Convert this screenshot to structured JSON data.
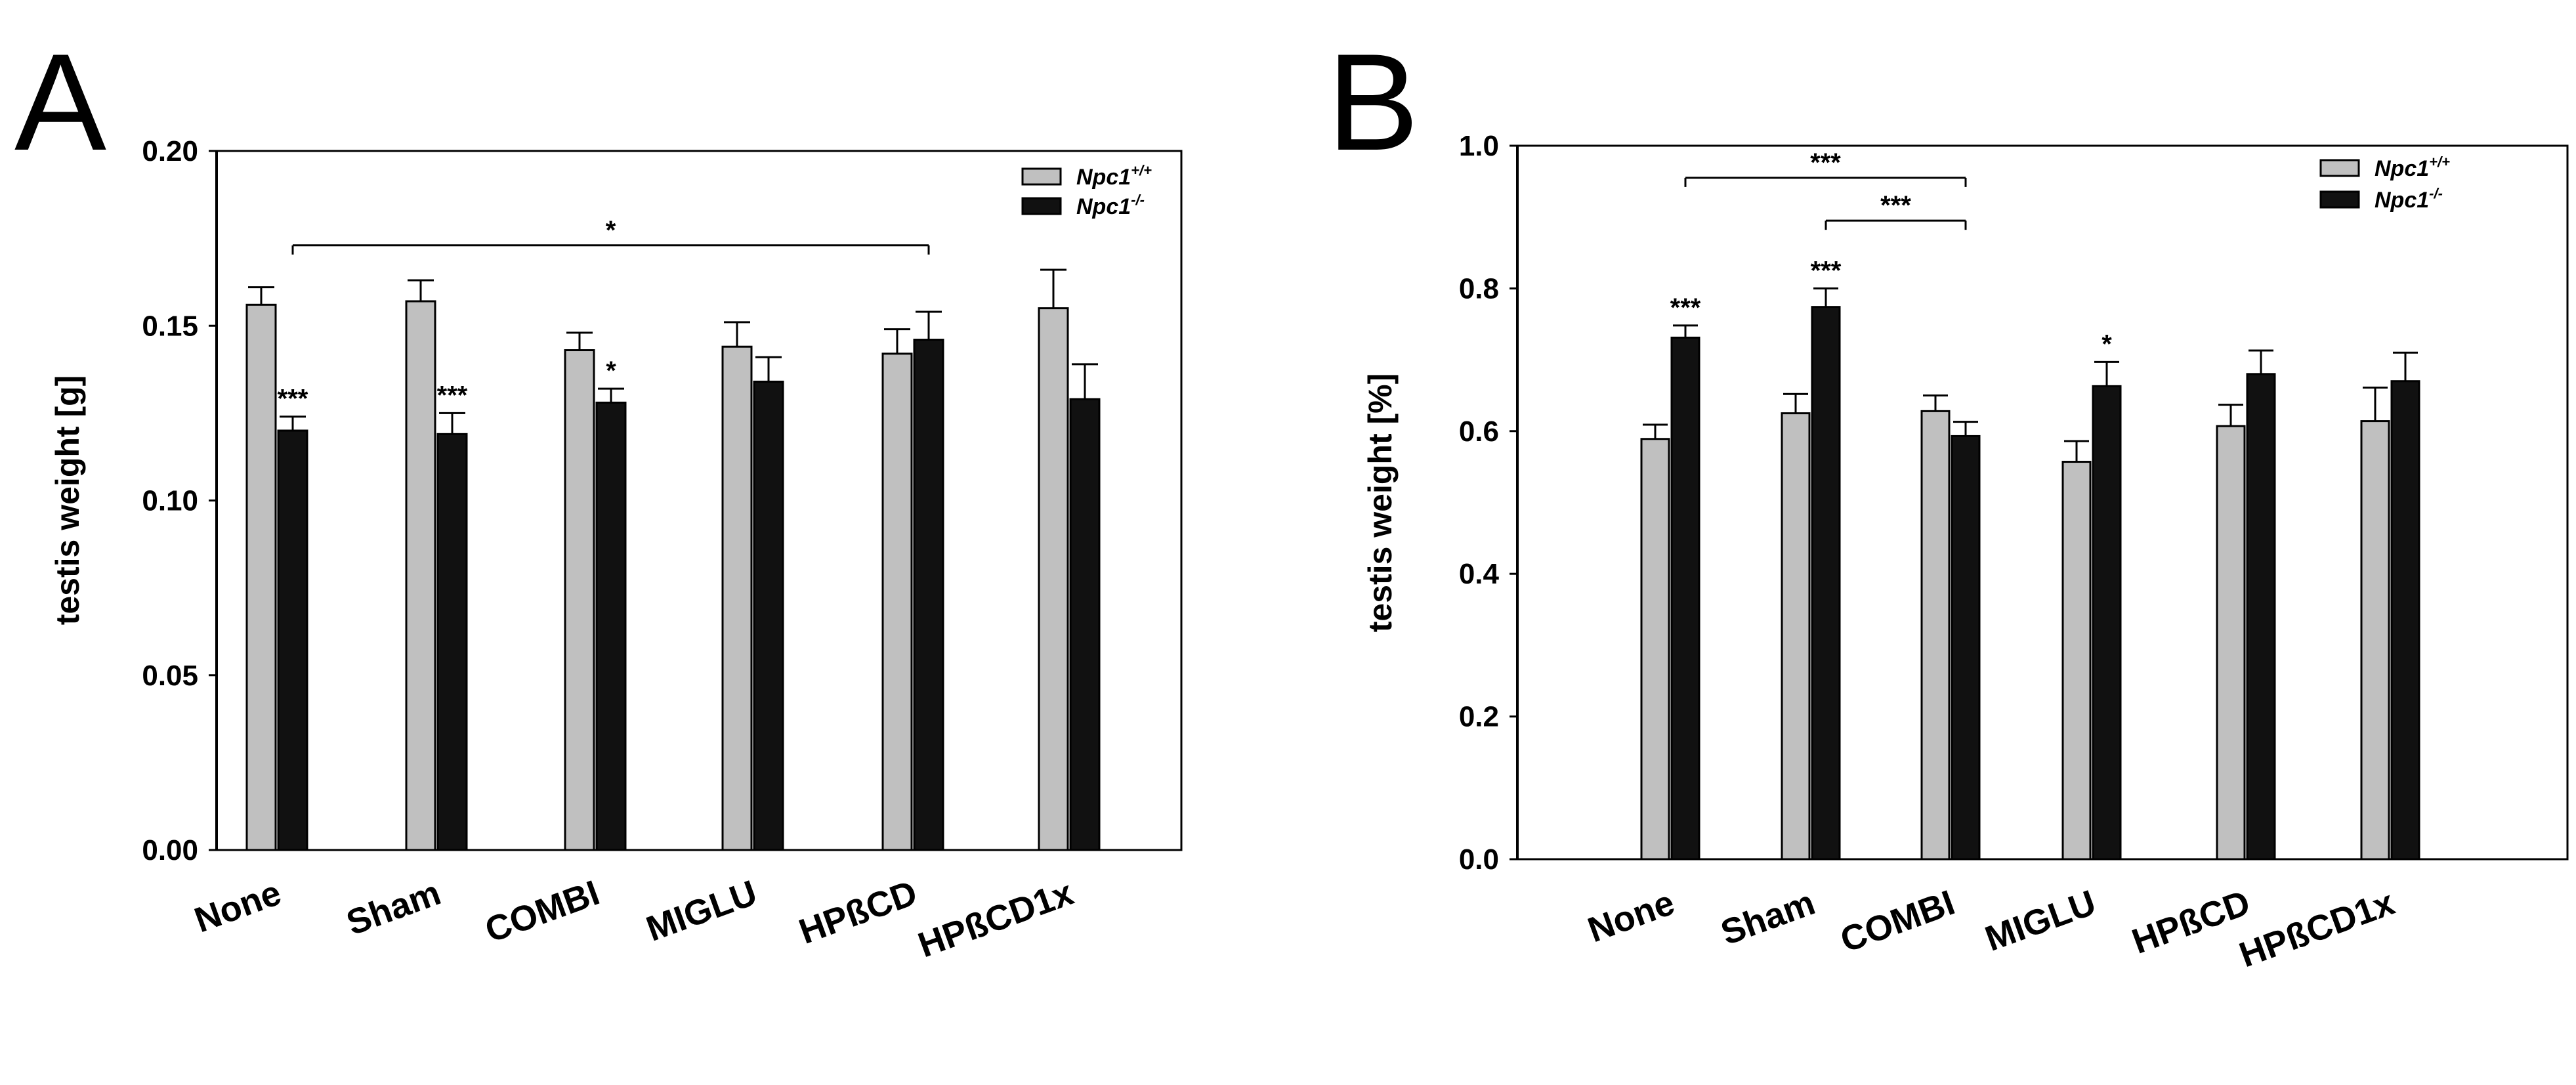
{
  "chart_data": [
    {
      "panel": "A",
      "type": "bar",
      "ylabel": "testis weight [g]",
      "ylim": [
        0,
        0.2
      ],
      "yticks": [
        0.0,
        0.05,
        0.1,
        0.15,
        0.2
      ],
      "ytick_labels": [
        "0.00",
        "0.05",
        "0.10",
        "0.15",
        "0.20"
      ],
      "categories": [
        "None",
        "Sham",
        "COMBI",
        "MIGLU",
        "HPßCD",
        "HPßCD1x"
      ],
      "legend": {
        "position": "top-right",
        "entries": [
          {
            "base": "Npc1",
            "sup": "+/+",
            "color": "#c0c0c0"
          },
          {
            "base": "Npc1",
            "sup": "-/-",
            "color": "#111111"
          }
        ]
      },
      "series": [
        {
          "name": "Npc1+/+",
          "values": [
            0.156,
            0.157,
            0.143,
            0.144,
            0.142,
            0.155
          ],
          "errors": [
            0.005,
            0.006,
            0.005,
            0.007,
            0.007,
            0.011
          ]
        },
        {
          "name": "Npc1-/-",
          "values": [
            0.12,
            0.119,
            0.128,
            0.134,
            0.146,
            0.129
          ],
          "errors": [
            0.004,
            0.006,
            0.004,
            0.007,
            0.008,
            0.01
          ]
        }
      ],
      "annotations": [
        {
          "text": "***",
          "category": 0,
          "series": 1
        },
        {
          "text": "***",
          "category": 1,
          "series": 1
        },
        {
          "text": "*",
          "category": 2,
          "series": 1
        }
      ],
      "brackets": [
        {
          "from": 0,
          "to": 4,
          "level": 0.173,
          "text": "*"
        }
      ]
    },
    {
      "panel": "B",
      "type": "bar",
      "ylabel": "testis weight [%]",
      "ylim": [
        0,
        1.0
      ],
      "yticks": [
        0.0,
        0.2,
        0.4,
        0.6,
        0.8,
        1.0
      ],
      "ytick_labels": [
        "0.0",
        "0.2",
        "0.4",
        "0.6",
        "0.8",
        "1.0"
      ],
      "categories": [
        "None",
        "Sham",
        "COMBI",
        "MIGLU",
        "HPßCD",
        "HPßCD1x"
      ],
      "legend": {
        "position": "top-right",
        "entries": [
          {
            "base": "Npc1",
            "sup": "+/+",
            "color": "#c0c0c0"
          },
          {
            "base": "Npc1",
            "sup": "-/-",
            "color": "#111111"
          }
        ]
      },
      "series": [
        {
          "name": "Npc1+/+",
          "values": [
            0.589,
            0.625,
            0.628,
            0.557,
            0.607,
            0.614
          ],
          "errors": [
            0.02,
            0.027,
            0.022,
            0.029,
            0.03,
            0.047
          ]
        },
        {
          "name": "Npc1-/-",
          "values": [
            0.731,
            0.774,
            0.593,
            0.663,
            0.68,
            0.67
          ],
          "errors": [
            0.017,
            0.026,
            0.02,
            0.034,
            0.033,
            0.04
          ]
        }
      ],
      "annotations": [
        {
          "text": "***",
          "category": 0,
          "series": 1
        },
        {
          "text": "***",
          "category": 1,
          "series": 1
        },
        {
          "text": "*",
          "category": 3,
          "series": 1
        }
      ],
      "brackets": [
        {
          "from": 0,
          "to": 2,
          "level": 0.955,
          "text": "***"
        },
        {
          "from": 1,
          "to": 2,
          "level": 0.895,
          "text": "***"
        }
      ]
    }
  ]
}
